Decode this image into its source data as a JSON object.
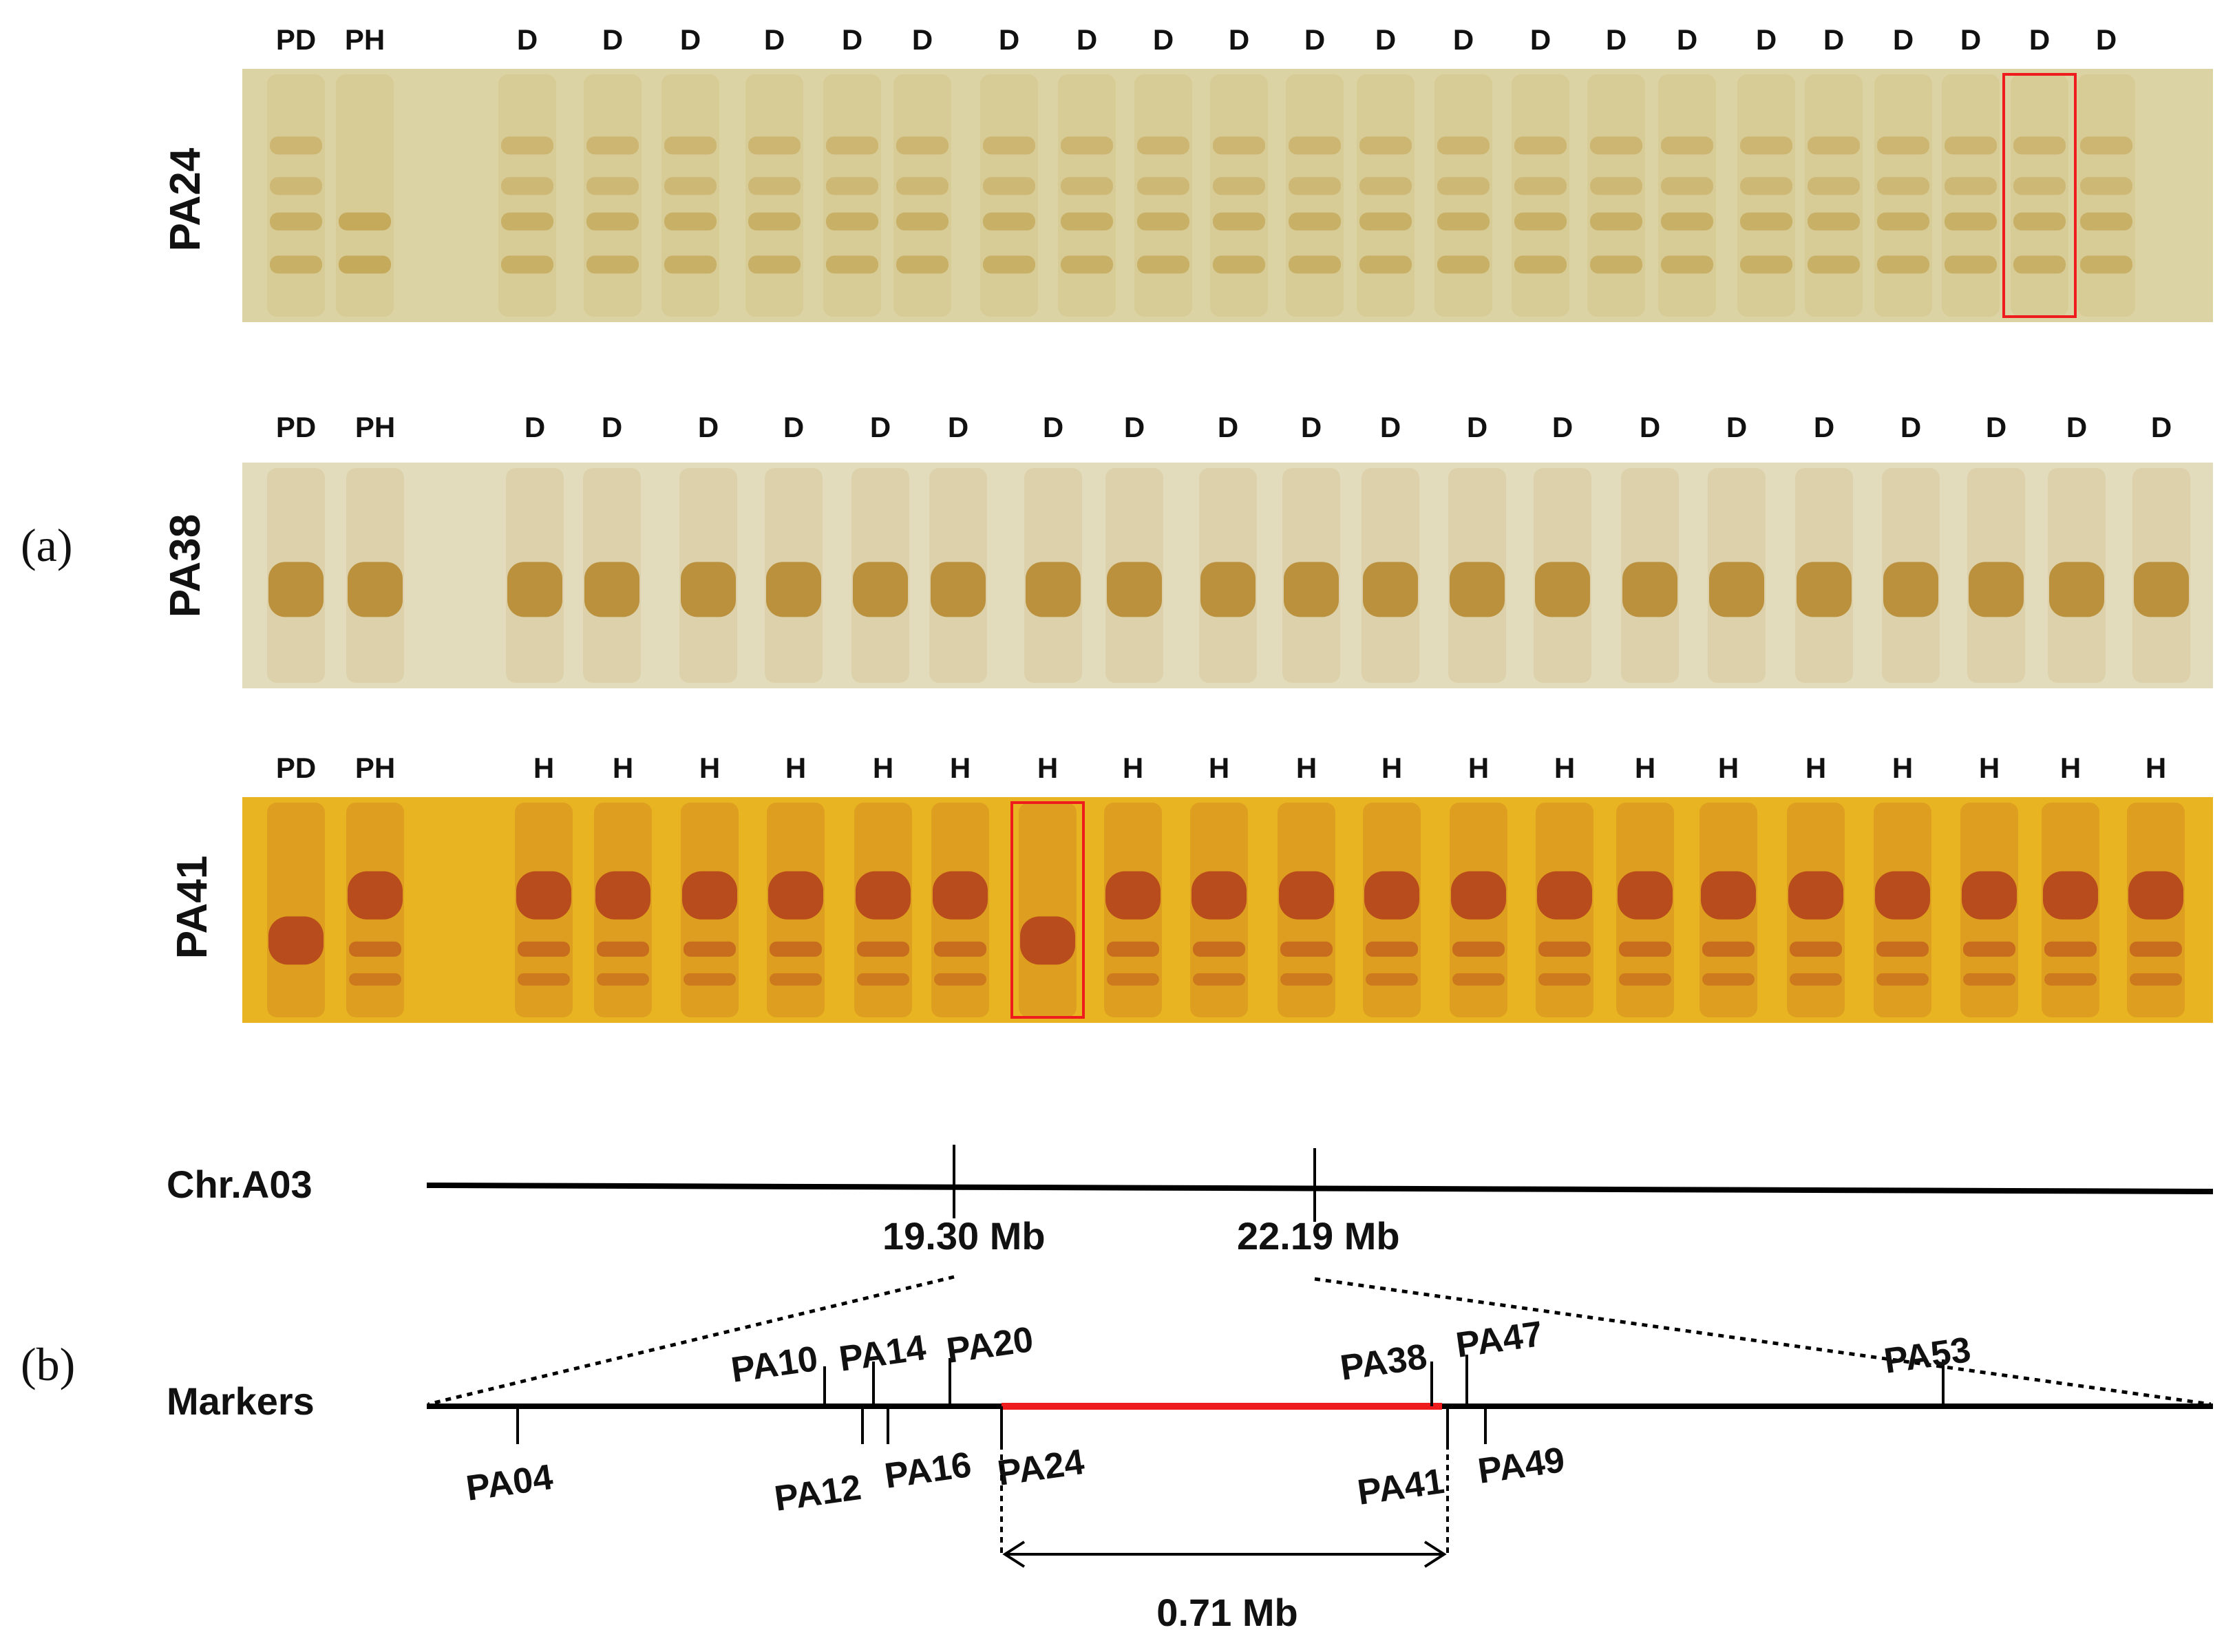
{
  "panel_labels": {
    "a": "(a)",
    "b": "(b)"
  },
  "gels": [
    {
      "name": "PA24",
      "lane_labels": [
        "PD",
        "PH",
        "D",
        "D",
        "D",
        "D",
        "D",
        "D",
        "D",
        "D",
        "D",
        "D",
        "D",
        "D",
        "D",
        "D",
        "D",
        "D",
        "D",
        "D",
        "D",
        "D",
        "D",
        "D"
      ],
      "highlighted_lane_index": 22,
      "colors": {
        "background": "#dcd3a4",
        "band": "#b8902e"
      }
    },
    {
      "name": "PA38",
      "lane_labels": [
        "PD",
        "PH",
        "D",
        "D",
        "D",
        "D",
        "D",
        "D",
        "D",
        "D",
        "D",
        "D",
        "D",
        "D",
        "D",
        "D",
        "D",
        "D",
        "D",
        "D",
        "D",
        "D"
      ],
      "highlighted_lane_index": null,
      "colors": {
        "background": "#e2dcbc",
        "band": "#b5862c"
      }
    },
    {
      "name": "PA41",
      "lane_labels": [
        "PD",
        "PH",
        "H",
        "H",
        "H",
        "H",
        "H",
        "H",
        "H",
        "H",
        "H",
        "H",
        "H",
        "H",
        "H",
        "H",
        "H",
        "H",
        "H",
        "H",
        "H",
        "H"
      ],
      "highlighted_lane_index": 8,
      "colors": {
        "background": "#e8b422",
        "band": "#b4431c"
      }
    }
  ],
  "chromosome": {
    "label": "Chr.A03",
    "positions": [
      "19.30 Mb",
      "22.19 Mb"
    ]
  },
  "markers": {
    "label": "Markers",
    "above": [
      "PA10",
      "PA14",
      "PA20",
      "PA38",
      "PA47",
      "PA53"
    ],
    "below": [
      "PA04",
      "PA12",
      "PA16",
      "PA24",
      "PA41",
      "PA49"
    ]
  },
  "interval": {
    "label": "0.71 Mb",
    "color": "#ee1c1c"
  }
}
